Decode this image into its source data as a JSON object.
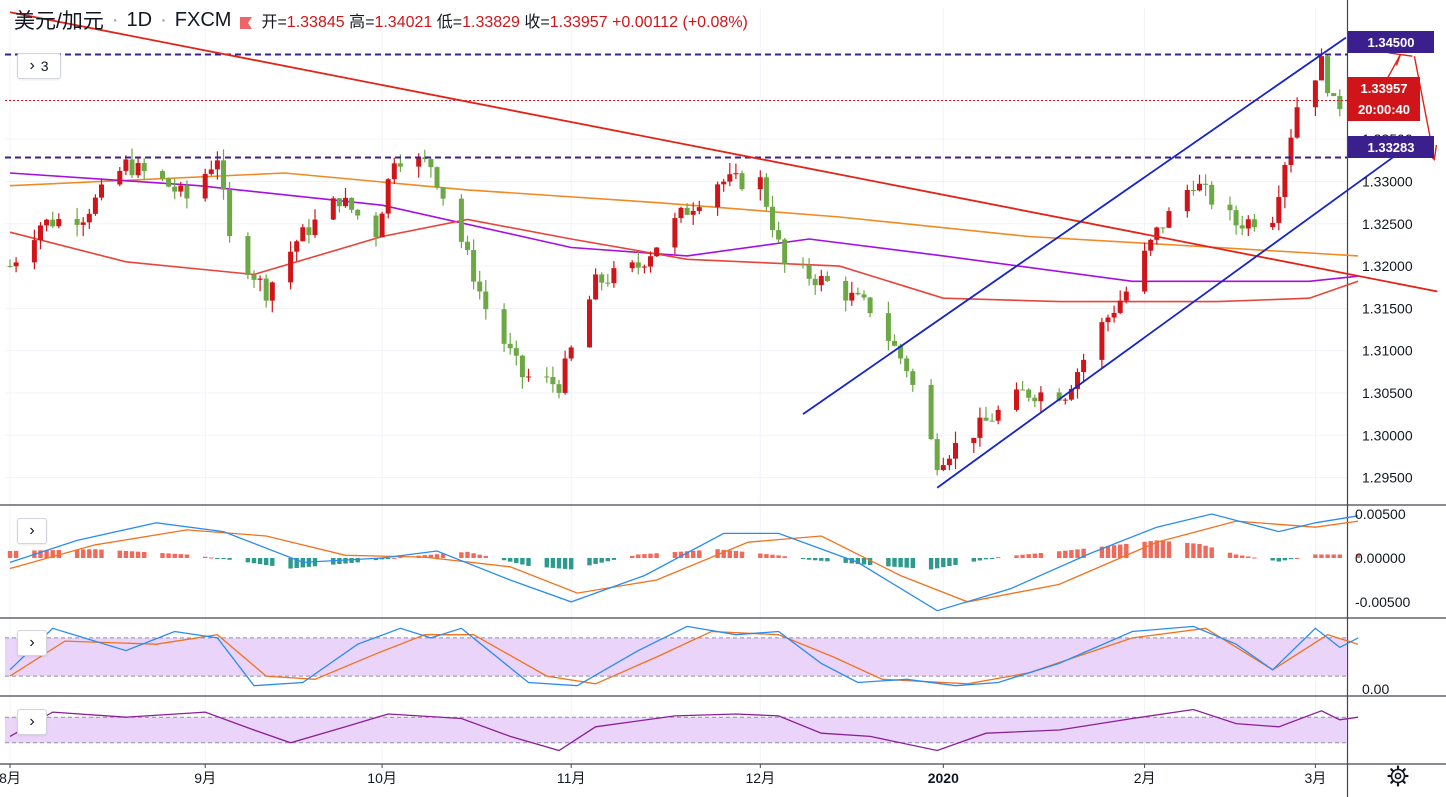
{
  "header": {
    "symbol": "美元/加元",
    "interval": "1D",
    "source": "FXCM",
    "open_label": "开=",
    "open": "1.33845",
    "high_label": "高=",
    "high": "1.34021",
    "low_label": "低=",
    "low": "1.33829",
    "close_label": "收=",
    "close": "1.33957",
    "change": "+0.00112 (+0.08%)"
  },
  "toolbar": {
    "indicators_count": "3",
    "chevron": "›"
  },
  "price_labels": {
    "resistance": "1.34500",
    "last": "1.33957",
    "countdown": "20:00:40",
    "support": "1.33283"
  },
  "icons": {
    "gear": "gear-icon",
    "flag": "flag-icon",
    "chevron": "chevron-right-icon"
  },
  "colors": {
    "up": "#d0151a",
    "down": "#6ca843",
    "trend": "#e22318",
    "channel": "#1624c8",
    "ma_orange": "#f08a24",
    "ma_purple": "#a50fe0",
    "ma_red": "#e8443a",
    "hline": "#3b1f8c",
    "macd_pos": "#ef6a5a",
    "macd_neg": "#2e9a8e",
    "fast": "#2a8cf0",
    "slow": "#f0731f",
    "osc_fill": "#ead4fa",
    "osc_line": "#8a1f9a"
  },
  "chart_data": [
    {
      "type": "candlestick",
      "panel": "price",
      "yaxis": {
        "range": [
          1.292,
          1.3505
        ],
        "ticks": [
          "1.34500",
          "1.33500",
          "1.33000",
          "1.32500",
          "1.32000",
          "1.31500",
          "1.31000",
          "1.30500",
          "1.30000",
          "1.29500"
        ]
      },
      "xaxis": {
        "ticks": [
          "8月",
          "9月",
          "10月",
          "11月",
          "12月",
          "2020",
          "2月",
          "3月"
        ],
        "tick_dates": [
          "2019-08-01",
          "2019-09-02",
          "2019-10-01",
          "2019-11-01",
          "2019-12-02",
          "2020-01-01",
          "2020-02-03",
          "2020-03-02"
        ]
      },
      "anchors": [
        [
          "2019-08-01",
          1.32
        ],
        [
          "2019-08-06",
          1.325
        ],
        [
          "2019-08-13",
          1.326
        ],
        [
          "2019-08-20",
          1.332
        ],
        [
          "2019-08-26",
          1.33
        ],
        [
          "2019-08-30",
          1.328
        ],
        [
          "2019-09-04",
          1.333
        ],
        [
          "2019-09-06",
          1.323
        ],
        [
          "2019-09-12",
          1.317
        ],
        [
          "2019-09-17",
          1.323
        ],
        [
          "2019-09-24",
          1.328
        ],
        [
          "2019-09-30",
          1.324
        ],
        [
          "2019-10-03",
          1.333
        ],
        [
          "2019-10-09",
          1.332
        ],
        [
          "2019-10-14",
          1.323
        ],
        [
          "2019-10-18",
          1.315
        ],
        [
          "2019-10-24",
          1.307
        ],
        [
          "2019-10-30",
          1.306
        ],
        [
          "2019-11-05",
          1.318
        ],
        [
          "2019-11-12",
          1.32
        ],
        [
          "2019-11-19",
          1.326
        ],
        [
          "2019-11-25",
          1.33
        ],
        [
          "2019-12-02",
          1.33
        ],
        [
          "2019-12-06",
          1.32
        ],
        [
          "2019-12-13",
          1.318
        ],
        [
          "2019-12-20",
          1.315
        ],
        [
          "2019-12-26",
          1.308
        ],
        [
          "2019-12-31",
          1.297
        ],
        [
          "2020-01-07",
          1.301
        ],
        [
          "2020-01-14",
          1.305
        ],
        [
          "2020-01-21",
          1.305
        ],
        [
          "2020-01-27",
          1.313
        ],
        [
          "2020-01-31",
          1.317
        ],
        [
          "2020-02-05",
          1.324
        ],
        [
          "2020-02-11",
          1.33
        ],
        [
          "2020-02-18",
          1.325
        ],
        [
          "2020-02-24",
          1.326
        ],
        [
          "2020-02-28",
          1.339
        ],
        [
          "2020-03-03",
          1.344
        ],
        [
          "2020-03-05",
          1.339
        ],
        [
          "2020-03-09",
          1.3396
        ]
      ],
      "moving_averages": [
        {
          "color": "ma_orange",
          "points": [
            [
              "2019-08-01",
              1.3295
            ],
            [
              "2019-09-15",
              1.331
            ],
            [
              "2019-10-15",
              1.329
            ],
            [
              "2019-11-15",
              1.3275
            ],
            [
              "2019-12-15",
              1.3258
            ],
            [
              "2020-01-15",
              1.3235
            ],
            [
              "2020-02-15",
              1.3222
            ],
            [
              "2020-03-09",
              1.3212
            ]
          ]
        },
        {
          "color": "ma_purple",
          "points": [
            [
              "2019-08-01",
              1.331
            ],
            [
              "2019-09-01",
              1.3295
            ],
            [
              "2019-10-01",
              1.3272
            ],
            [
              "2019-11-01",
              1.3222
            ],
            [
              "2019-11-20",
              1.3212
            ],
            [
              "2019-12-10",
              1.3232
            ],
            [
              "2020-01-01",
              1.3212
            ],
            [
              "2020-02-01",
              1.3182
            ],
            [
              "2020-03-01",
              1.3182
            ],
            [
              "2020-03-09",
              1.3188
            ]
          ]
        },
        {
          "color": "ma_red",
          "points": [
            [
              "2019-08-01",
              1.324
            ],
            [
              "2019-08-20",
              1.3205
            ],
            [
              "2019-09-10",
              1.319
            ],
            [
              "2019-10-01",
              1.3235
            ],
            [
              "2019-10-15",
              1.3255
            ],
            [
              "2019-11-01",
              1.3232
            ],
            [
              "2019-11-20",
              1.3208
            ],
            [
              "2019-12-15",
              1.32
            ],
            [
              "2020-01-01",
              1.3162
            ],
            [
              "2020-01-20",
              1.3158
            ],
            [
              "2020-02-15",
              1.3158
            ],
            [
              "2020-03-01",
              1.3162
            ],
            [
              "2020-03-09",
              1.3182
            ]
          ]
        }
      ],
      "hlines": [
        1.345,
        1.33283
      ],
      "price_line": 1.33957,
      "trendlines": [
        {
          "color": "trend",
          "from": [
            "2019-08-01",
            1.35
          ],
          "to": [
            "2020-03-22",
            1.317
          ]
        },
        {
          "color": "channel",
          "from": [
            "2019-12-09",
            1.3025
          ],
          "to": [
            "2020-03-07",
            1.347
          ]
        },
        {
          "color": "channel",
          "from": [
            "2019-12-31",
            1.2938
          ],
          "to": [
            "2020-03-15",
            1.333
          ]
        }
      ]
    },
    {
      "type": "bar",
      "panel": "macd",
      "yaxis": {
        "range": [
          -0.0066,
          0.0058
        ],
        "ticks": [
          "0.00500",
          "0.00000",
          "-0.00500"
        ]
      },
      "hist": [
        [
          "2019-08-01",
          0.0008
        ],
        [
          "2019-08-15",
          0.001
        ],
        [
          "2019-08-30",
          0.0004
        ],
        [
          "2019-09-06",
          -0.0002
        ],
        [
          "2019-09-16",
          -0.0012
        ],
        [
          "2019-09-27",
          -0.0005
        ],
        [
          "2019-10-04",
          0.0001
        ],
        [
          "2019-10-15",
          0.0007
        ],
        [
          "2019-10-25",
          -0.0009
        ],
        [
          "2019-11-01",
          -0.0013
        ],
        [
          "2019-11-12",
          0.0004
        ],
        [
          "2019-11-25",
          0.001
        ],
        [
          "2019-12-05",
          0.0003
        ],
        [
          "2019-12-10",
          -0.0002
        ],
        [
          "2019-12-20",
          -0.0008
        ],
        [
          "2019-12-30",
          -0.0013
        ],
        [
          "2020-01-10",
          0.0001
        ],
        [
          "2020-01-22",
          0.0009
        ],
        [
          "2020-02-05",
          0.002
        ],
        [
          "2020-02-12",
          0.0016
        ],
        [
          "2020-02-18",
          0.0004
        ],
        [
          "2020-02-25",
          -0.0004
        ],
        [
          "2020-03-02",
          0.0004
        ],
        [
          "2020-03-09",
          0.0004
        ]
      ],
      "fast": [
        [
          "2019-08-01",
          -0.0005
        ],
        [
          "2019-08-12",
          0.002
        ],
        [
          "2019-08-25",
          0.004
        ],
        [
          "2019-09-05",
          0.003
        ],
        [
          "2019-09-18",
          -0.0005
        ],
        [
          "2019-10-01",
          0.0
        ],
        [
          "2019-10-10",
          0.0008
        ],
        [
          "2019-10-22",
          -0.0025
        ],
        [
          "2019-11-01",
          -0.005
        ],
        [
          "2019-11-13",
          -0.002
        ],
        [
          "2019-11-26",
          0.0028
        ],
        [
          "2019-12-05",
          0.0028
        ],
        [
          "2019-12-18",
          -0.0005
        ],
        [
          "2019-12-31",
          -0.006
        ],
        [
          "2020-01-12",
          -0.0035
        ],
        [
          "2020-01-25",
          0.0005
        ],
        [
          "2020-02-05",
          0.0035
        ],
        [
          "2020-02-14",
          0.005
        ],
        [
          "2020-02-25",
          0.003
        ],
        [
          "2020-03-02",
          0.004
        ],
        [
          "2020-03-09",
          0.0048
        ]
      ],
      "slow": [
        [
          "2019-08-01",
          -0.0012
        ],
        [
          "2019-08-15",
          0.0015
        ],
        [
          "2019-08-30",
          0.0032
        ],
        [
          "2019-09-12",
          0.0025
        ],
        [
          "2019-09-25",
          0.0003
        ],
        [
          "2019-10-08",
          0.0001
        ],
        [
          "2019-10-22",
          -0.001
        ],
        [
          "2019-11-02",
          -0.004
        ],
        [
          "2019-11-15",
          -0.0025
        ],
        [
          "2019-11-30",
          0.0018
        ],
        [
          "2019-12-12",
          0.0025
        ],
        [
          "2019-12-25",
          -0.002
        ],
        [
          "2020-01-05",
          -0.005
        ],
        [
          "2020-01-20",
          -0.003
        ],
        [
          "2020-02-05",
          0.0018
        ],
        [
          "2020-02-18",
          0.0042
        ],
        [
          "2020-03-02",
          0.0035
        ],
        [
          "2020-03-09",
          0.0042
        ]
      ]
    },
    {
      "type": "line",
      "panel": "stochastic",
      "yaxis": {
        "range": [
          -8,
          108
        ],
        "ticks": [
          "0.00"
        ]
      },
      "band": [
        20,
        80
      ],
      "fast": [
        [
          "2019-08-01",
          30
        ],
        [
          "2019-08-08",
          95
        ],
        [
          "2019-08-20",
          60
        ],
        [
          "2019-08-28",
          90
        ],
        [
          "2019-09-04",
          80
        ],
        [
          "2019-09-10",
          5
        ],
        [
          "2019-09-18",
          10
        ],
        [
          "2019-09-27",
          70
        ],
        [
          "2019-10-04",
          95
        ],
        [
          "2019-10-09",
          80
        ],
        [
          "2019-10-14",
          95
        ],
        [
          "2019-10-25",
          10
        ],
        [
          "2019-11-02",
          5
        ],
        [
          "2019-11-12",
          60
        ],
        [
          "2019-11-20",
          98
        ],
        [
          "2019-11-28",
          85
        ],
        [
          "2019-12-05",
          90
        ],
        [
          "2019-12-12",
          40
        ],
        [
          "2019-12-18",
          10
        ],
        [
          "2019-12-26",
          15
        ],
        [
          "2020-01-03",
          5
        ],
        [
          "2020-01-10",
          10
        ],
        [
          "2020-01-20",
          40
        ],
        [
          "2020-02-01",
          90
        ],
        [
          "2020-02-11",
          98
        ],
        [
          "2020-02-18",
          70
        ],
        [
          "2020-02-24",
          30
        ],
        [
          "2020-03-02",
          95
        ],
        [
          "2020-03-06",
          65
        ],
        [
          "2020-03-09",
          80
        ]
      ],
      "slow": [
        [
          "2019-08-01",
          20
        ],
        [
          "2019-08-10",
          75
        ],
        [
          "2019-08-25",
          70
        ],
        [
          "2019-09-04",
          85
        ],
        [
          "2019-09-12",
          20
        ],
        [
          "2019-09-20",
          15
        ],
        [
          "2019-09-30",
          55
        ],
        [
          "2019-10-08",
          85
        ],
        [
          "2019-10-16",
          85
        ],
        [
          "2019-10-28",
          20
        ],
        [
          "2019-11-05",
          8
        ],
        [
          "2019-11-15",
          50
        ],
        [
          "2019-11-24",
          90
        ],
        [
          "2019-12-05",
          85
        ],
        [
          "2019-12-14",
          50
        ],
        [
          "2019-12-22",
          15
        ],
        [
          "2020-01-05",
          8
        ],
        [
          "2020-01-15",
          25
        ],
        [
          "2020-02-01",
          80
        ],
        [
          "2020-02-13",
          95
        ],
        [
          "2020-02-24",
          30
        ],
        [
          "2020-03-04",
          85
        ],
        [
          "2020-03-09",
          70
        ]
      ]
    },
    {
      "type": "line",
      "panel": "rsi",
      "yaxis": {
        "range": [
          0,
          100
        ]
      },
      "band": [
        30,
        70
      ],
      "line": [
        [
          "2019-08-01",
          40
        ],
        [
          "2019-08-08",
          78
        ],
        [
          "2019-08-20",
          70
        ],
        [
          "2019-09-02",
          78
        ],
        [
          "2019-09-10",
          50
        ],
        [
          "2019-09-16",
          30
        ],
        [
          "2019-09-25",
          55
        ],
        [
          "2019-10-02",
          75
        ],
        [
          "2019-10-14",
          68
        ],
        [
          "2019-10-22",
          40
        ],
        [
          "2019-10-30",
          18
        ],
        [
          "2019-11-05",
          55
        ],
        [
          "2019-11-18",
          72
        ],
        [
          "2019-11-28",
          75
        ],
        [
          "2019-12-05",
          72
        ],
        [
          "2019-12-12",
          45
        ],
        [
          "2019-12-20",
          40
        ],
        [
          "2019-12-31",
          18
        ],
        [
          "2020-01-08",
          45
        ],
        [
          "2020-01-20",
          50
        ],
        [
          "2020-02-01",
          68
        ],
        [
          "2020-02-11",
          82
        ],
        [
          "2020-02-18",
          60
        ],
        [
          "2020-02-25",
          55
        ],
        [
          "2020-03-03",
          80
        ],
        [
          "2020-03-06",
          66
        ],
        [
          "2020-03-09",
          70
        ]
      ]
    }
  ]
}
